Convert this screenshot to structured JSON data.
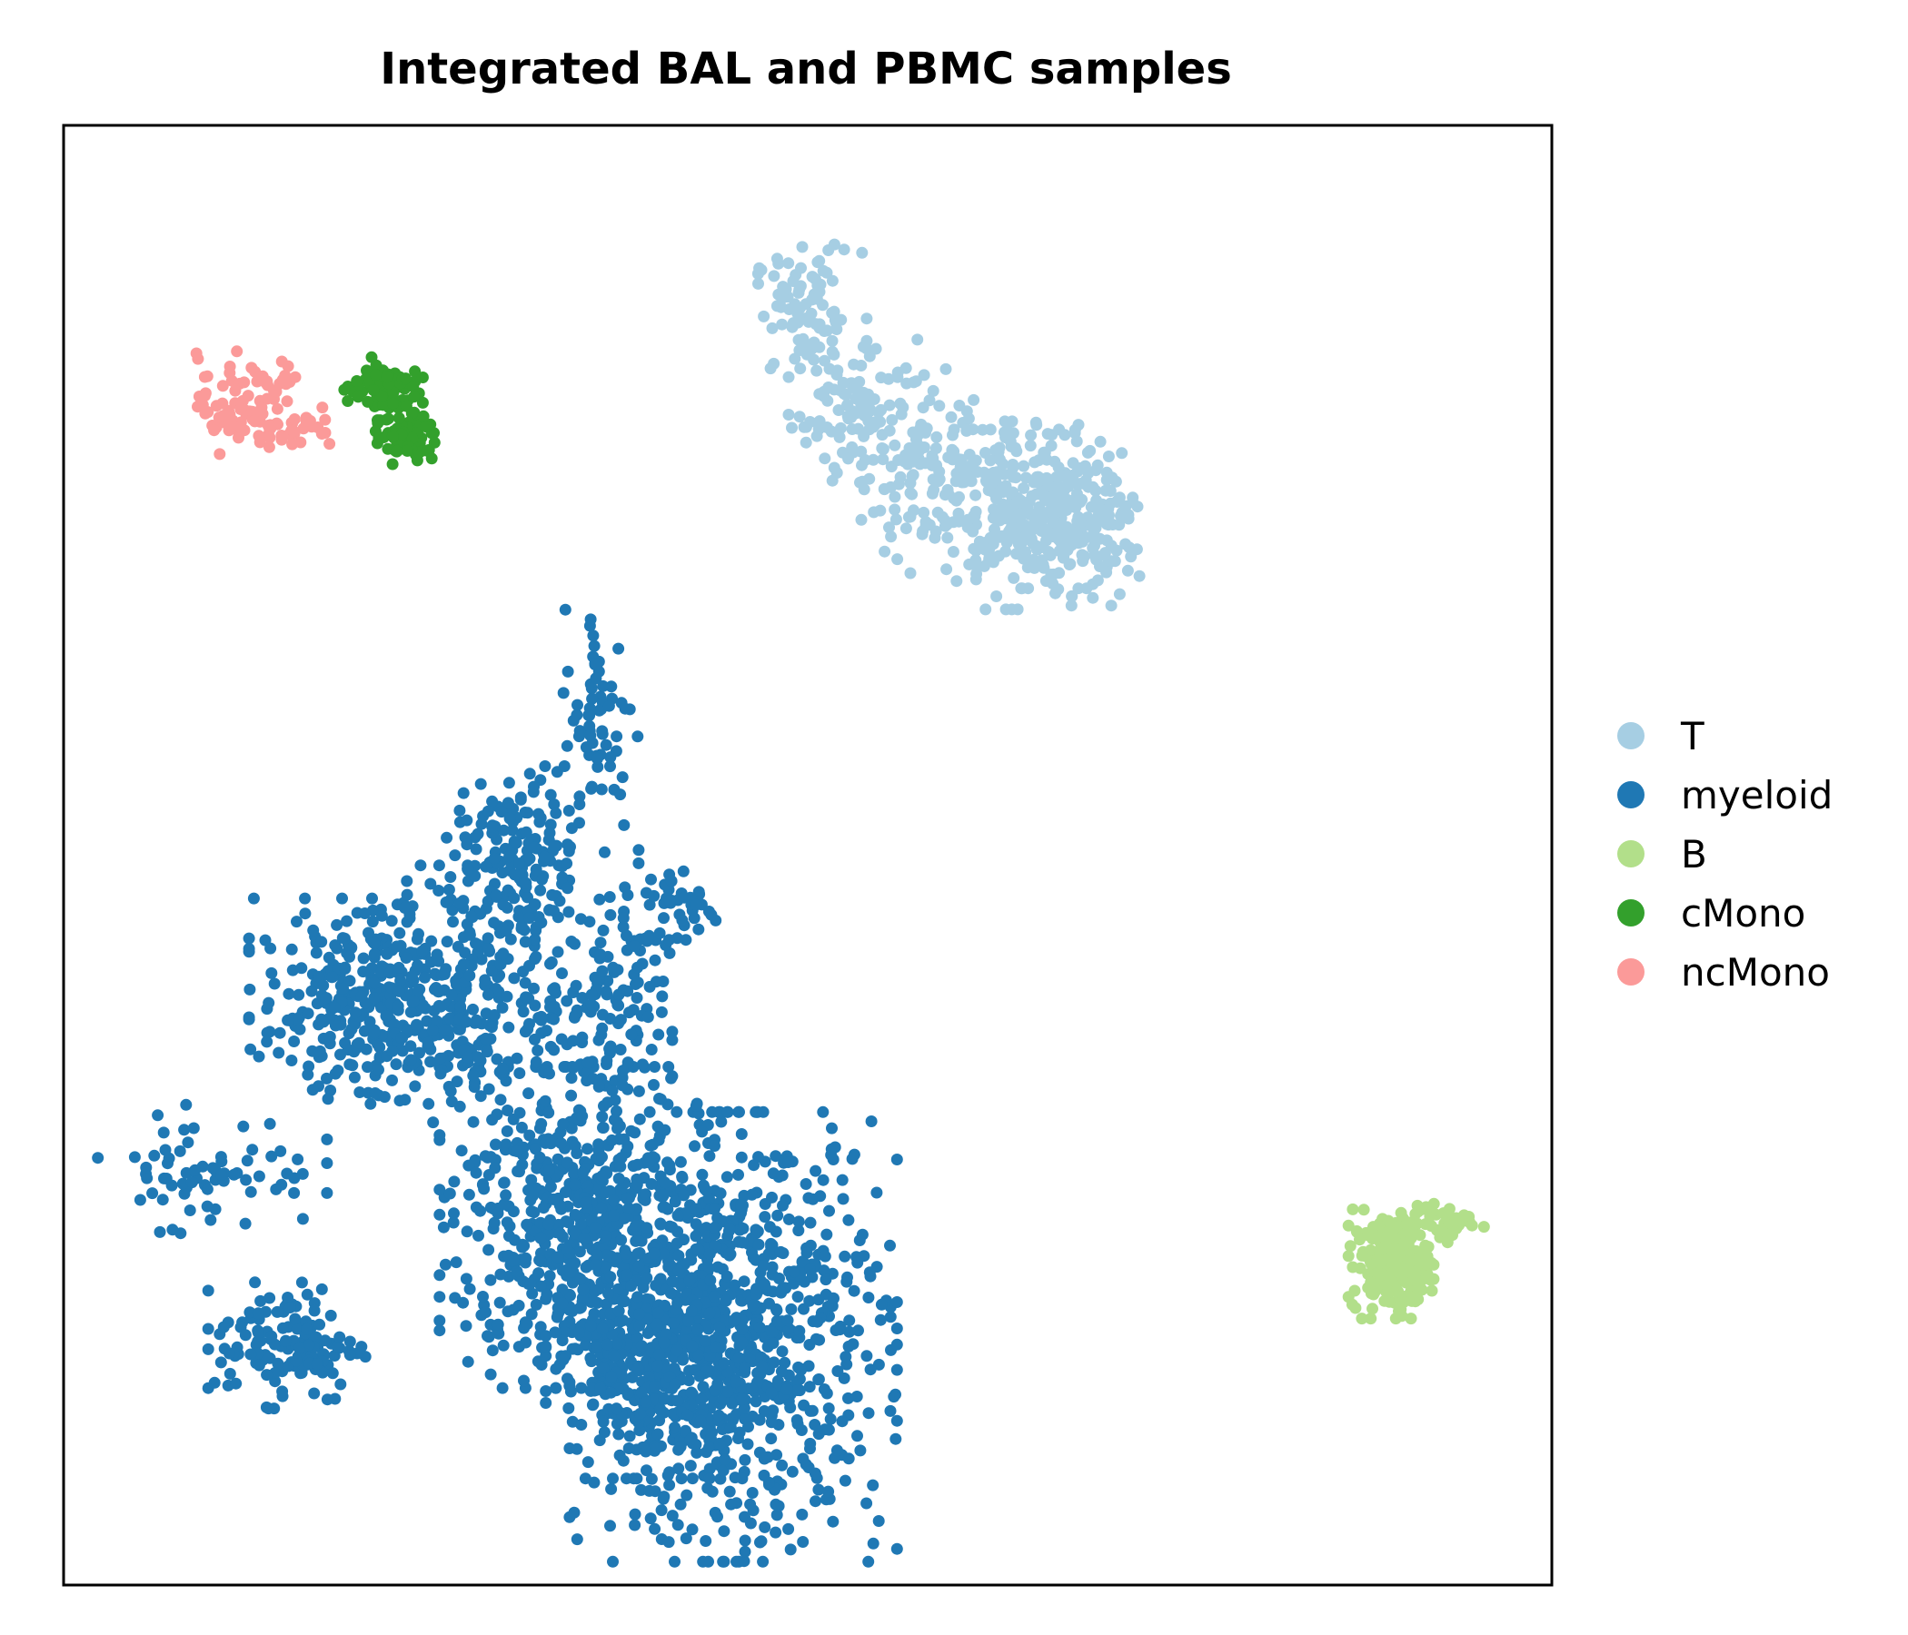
{
  "chart_data": {
    "type": "scatter",
    "title": "Integrated BAL and PBMC samples",
    "xlabel": "",
    "ylabel": "",
    "xlim": [
      0,
      100
    ],
    "ylim": [
      0,
      100
    ],
    "grid": false,
    "ticks": false,
    "legend_position": "right",
    "series": [
      {
        "name": "T",
        "color": "#a6cee3",
        "clusters": [
          {
            "cx": 50.0,
            "cy": 87.0,
            "sx": 1.8,
            "sy": 2.2,
            "n": 90
          },
          {
            "cx": 54.0,
            "cy": 80.5,
            "sx": 2.4,
            "sy": 2.4,
            "n": 110
          },
          {
            "cx": 58.5,
            "cy": 76.0,
            "sx": 2.4,
            "sy": 2.6,
            "n": 120
          },
          {
            "cx": 63.5,
            "cy": 73.0,
            "sx": 3.0,
            "sy": 2.8,
            "n": 170
          },
          {
            "cx": 67.0,
            "cy": 74.0,
            "sx": 2.2,
            "sy": 2.6,
            "n": 150
          },
          {
            "cx": 68.5,
            "cy": 71.5,
            "sx": 1.8,
            "sy": 2.0,
            "n": 90
          }
        ]
      },
      {
        "name": "myeloid",
        "color": "#1f78b4",
        "clusters": [
          {
            "cx": 45.0,
            "cy": 17.0,
            "sx": 5.0,
            "sy": 7.0,
            "n": 900
          },
          {
            "cx": 34.5,
            "cy": 24.5,
            "sx": 4.2,
            "sy": 5.0,
            "n": 600
          },
          {
            "cx": 39.0,
            "cy": 15.0,
            "sx": 3.0,
            "sy": 3.5,
            "n": 250
          },
          {
            "cx": 19.5,
            "cy": 40.0,
            "sx": 3.2,
            "sy": 3.2,
            "n": 280
          },
          {
            "cx": 27.5,
            "cy": 40.5,
            "sx": 3.0,
            "sy": 4.0,
            "n": 260
          },
          {
            "cx": 30.5,
            "cy": 49.5,
            "sx": 2.2,
            "sy": 3.0,
            "n": 160
          },
          {
            "cx": 36.5,
            "cy": 39.0,
            "sx": 2.0,
            "sy": 4.0,
            "n": 140
          },
          {
            "cx": 15.0,
            "cy": 16.5,
            "sx": 2.4,
            "sy": 2.0,
            "n": 140
          },
          {
            "cx": 36.0,
            "cy": 59.0,
            "sx": 1.2,
            "sy": 4.0,
            "n": 70
          },
          {
            "cx": 41.5,
            "cy": 46.5,
            "sx": 1.3,
            "sy": 1.4,
            "n": 40
          },
          {
            "cx": 10.0,
            "cy": 28.5,
            "sx": 3.5,
            "sy": 2.0,
            "n": 70
          }
        ]
      },
      {
        "name": "B",
        "color": "#b2df8a",
        "clusters": [
          {
            "cx": 89.2,
            "cy": 22.0,
            "sx": 1.3,
            "sy": 1.7,
            "n": 220
          },
          {
            "cx": 92.8,
            "cy": 24.8,
            "sx": 1.2,
            "sy": 0.6,
            "n": 40
          }
        ]
      },
      {
        "name": "cMono",
        "color": "#33a02c",
        "clusters": [
          {
            "cx": 21.5,
            "cy": 82.0,
            "sx": 1.2,
            "sy": 1.0,
            "n": 90
          },
          {
            "cx": 23.0,
            "cy": 78.5,
            "sx": 1.1,
            "sy": 0.8,
            "n": 70
          }
        ]
      },
      {
        "name": "ncMono",
        "color": "#fb9a99",
        "clusters": [
          {
            "cx": 11.0,
            "cy": 81.0,
            "sx": 1.0,
            "sy": 1.6,
            "n": 50
          },
          {
            "cx": 14.5,
            "cy": 79.5,
            "sx": 2.0,
            "sy": 0.8,
            "n": 50
          },
          {
            "cx": 14.0,
            "cy": 82.5,
            "sx": 1.0,
            "sy": 0.6,
            "n": 20
          }
        ]
      }
    ]
  }
}
